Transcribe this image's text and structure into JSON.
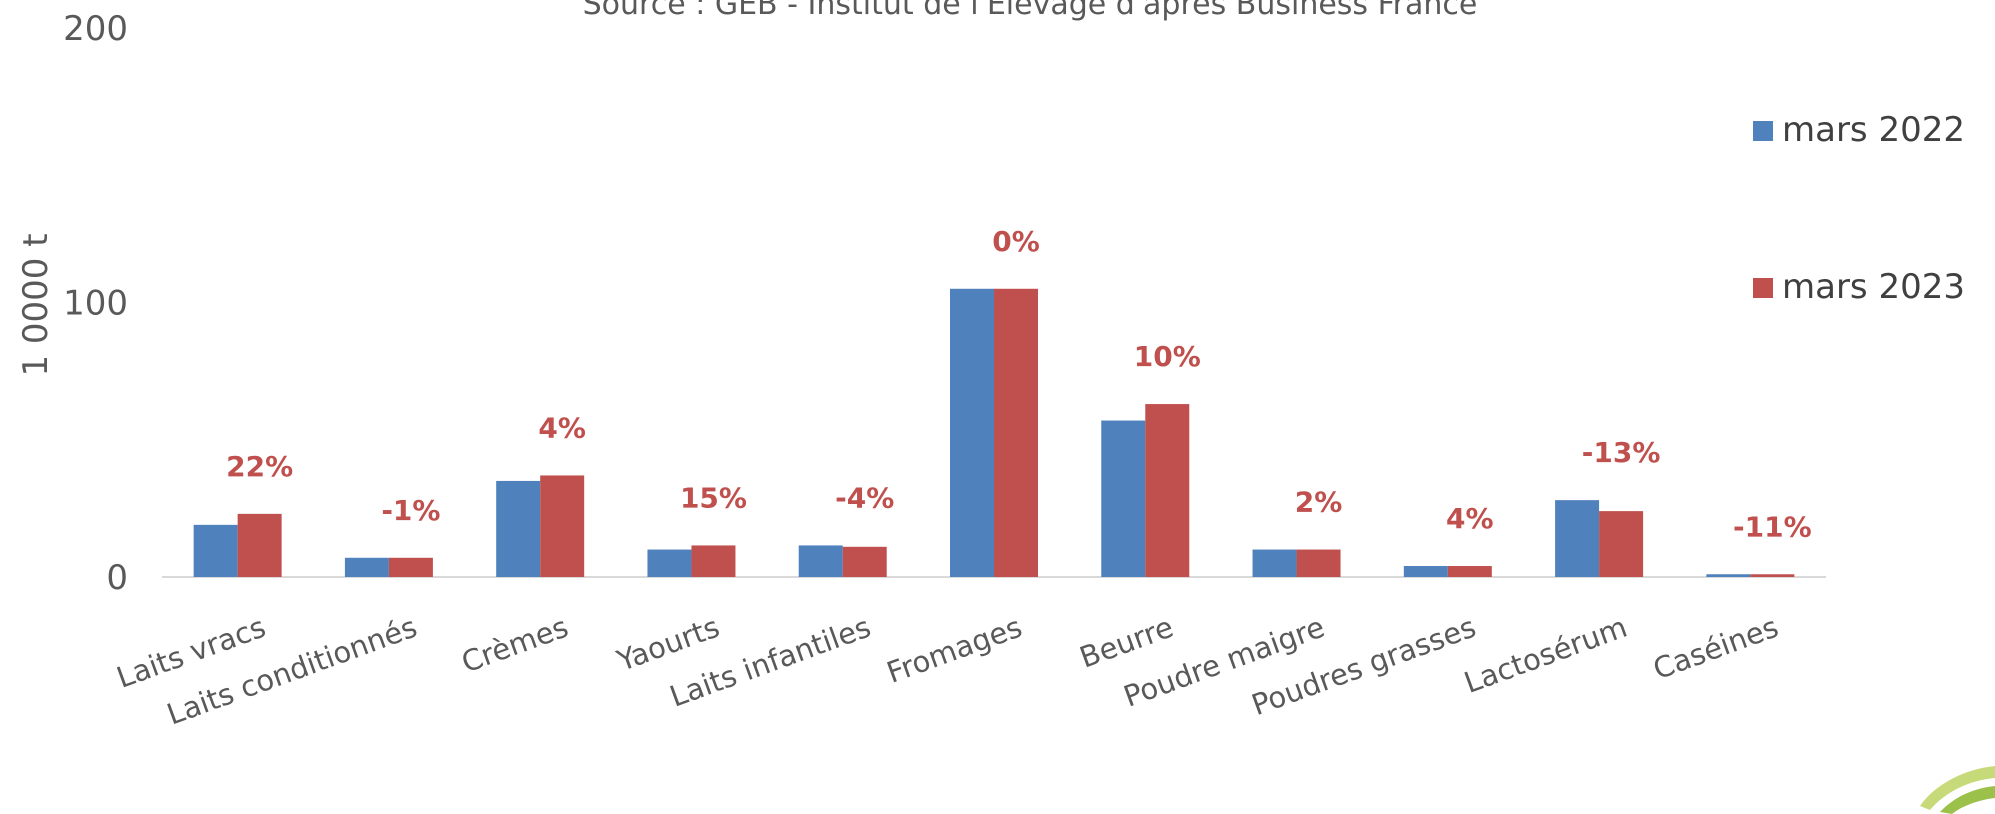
{
  "chart_data": {
    "type": "bar",
    "subtitle": "Source : GEB - Institut de l'Elevage d'après Business France",
    "ylabel": "1 0000 t",
    "ylim": [
      0,
      200
    ],
    "yticks": [
      "0",
      "100",
      "200"
    ],
    "grid": false,
    "legend_position": "right",
    "categories": [
      "Laits vracs",
      "Laits conditionnés",
      "Crèmes",
      "Yaourts",
      "Laits infantiles",
      "Fromages",
      "Beurre",
      "Poudre maigre",
      "Poudres grasses",
      "Lactosérum",
      "Caséines"
    ],
    "series": [
      {
        "name": "mars 2022",
        "color": "#4F81BD",
        "values": [
          19,
          7,
          35,
          10,
          11.5,
          105,
          57,
          10,
          4,
          28,
          1
        ]
      },
      {
        "name": "mars 2023",
        "color": "#C0504D",
        "values": [
          23,
          7,
          37,
          11.5,
          11,
          105,
          63,
          10,
          4,
          24,
          1
        ]
      }
    ],
    "annotations": [
      "22%",
      "-1%",
      "4%",
      "15%",
      "-4%",
      "0%",
      "10%",
      "2%",
      "4%",
      "-13%",
      "-11%"
    ],
    "annotation_color": "#C0504D"
  }
}
